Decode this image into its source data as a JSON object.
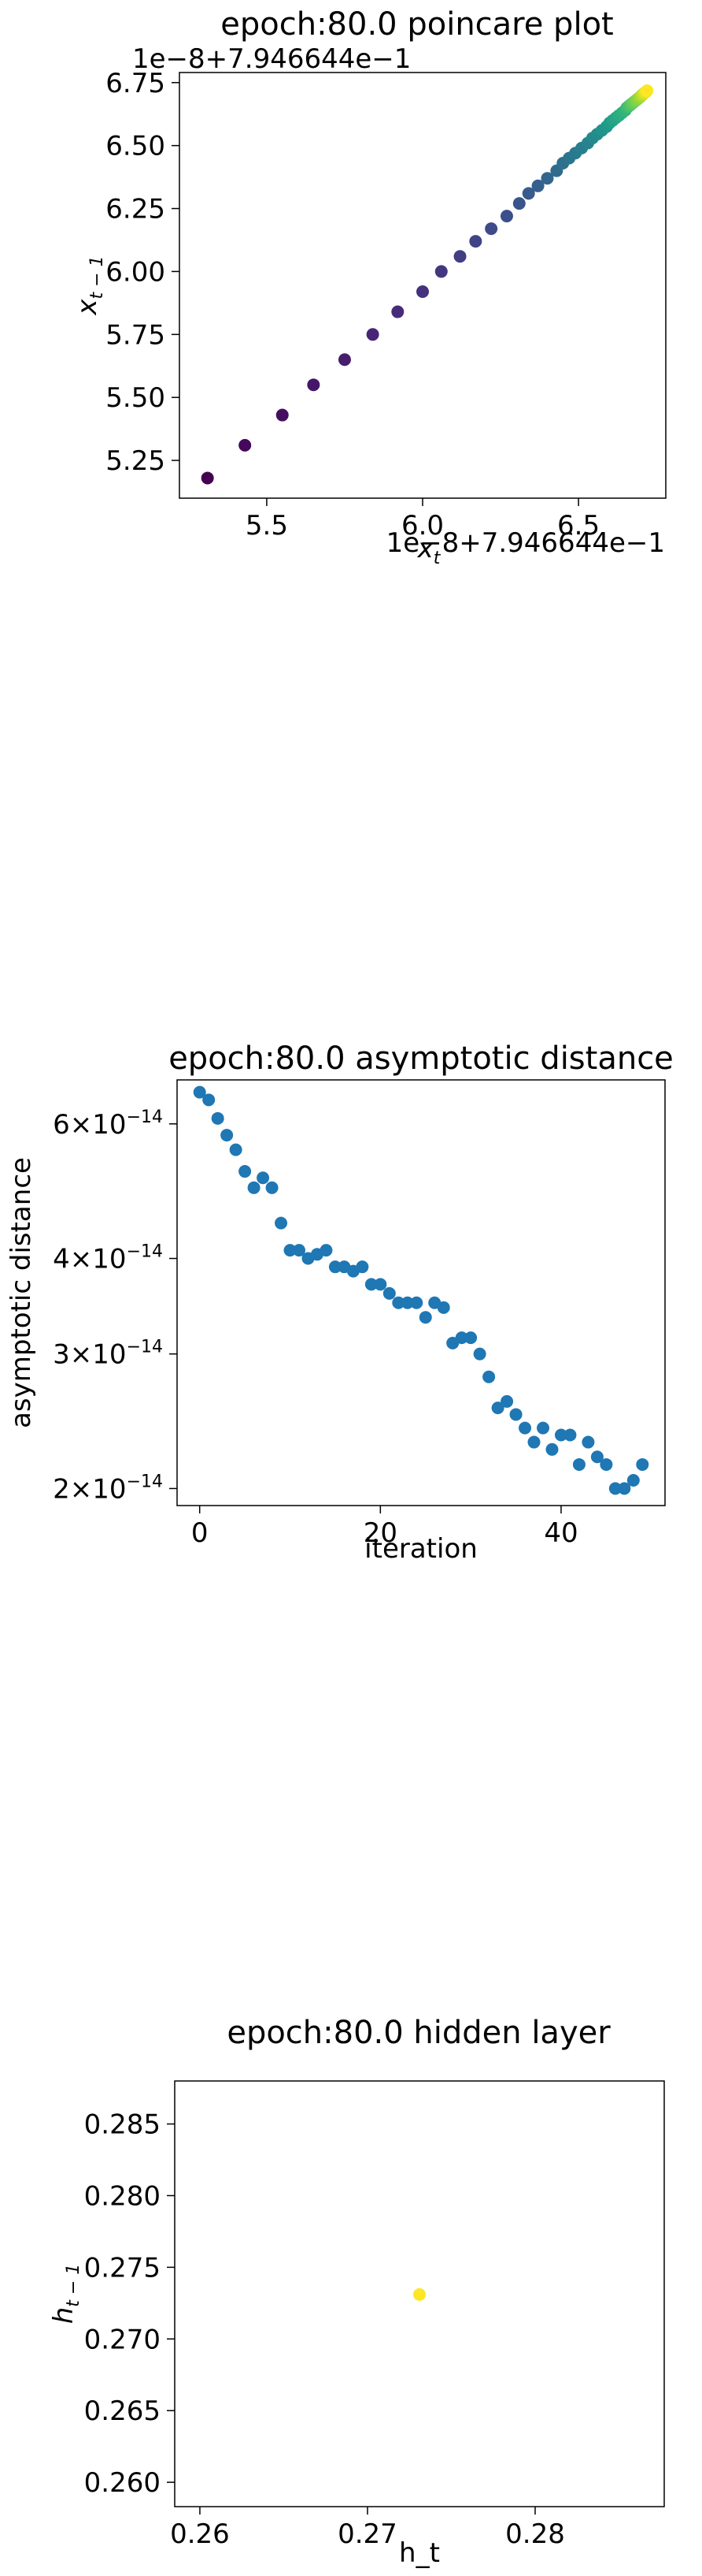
{
  "chart_data": [
    {
      "type": "scatter",
      "title": "epoch:80.0 poincare plot",
      "xlabel": "x_t",
      "ylabel": "x_{t-1}",
      "x_offset_label": "1e−8+7.946644e−1",
      "y_offset_label": "1e−8+7.946644e−1",
      "xlim": [
        5.22,
        6.78
      ],
      "ylim": [
        5.1,
        6.79
      ],
      "xticks": [
        5.5,
        6.0,
        6.5
      ],
      "xtick_labels": [
        "5.5",
        "6.0",
        "6.5"
      ],
      "yticks": [
        5.25,
        5.5,
        5.75,
        6.0,
        6.25,
        6.5,
        6.75
      ],
      "ytick_labels": [
        "5.25",
        "5.50",
        "5.75",
        "6.00",
        "6.25",
        "6.50",
        "6.75"
      ],
      "colormap": "viridis",
      "grid": false,
      "x": [
        5.31,
        5.43,
        5.55,
        5.65,
        5.75,
        5.84,
        5.92,
        6.0,
        6.06,
        6.12,
        6.17,
        6.22,
        6.27,
        6.31,
        6.34,
        6.37,
        6.4,
        6.43,
        6.45,
        6.47,
        6.49,
        6.51,
        6.53,
        6.545,
        6.56,
        6.575,
        6.59,
        6.6,
        6.61,
        6.62,
        6.63,
        6.64,
        6.65,
        6.655,
        6.66,
        6.665,
        6.67,
        6.675,
        6.68,
        6.685,
        6.69,
        6.695,
        6.7,
        6.703,
        6.706,
        6.709,
        6.712,
        6.715,
        6.718,
        6.72
      ],
      "y": [
        5.18,
        5.31,
        5.43,
        5.55,
        5.65,
        5.75,
        5.84,
        5.92,
        6.0,
        6.06,
        6.12,
        6.17,
        6.22,
        6.27,
        6.31,
        6.34,
        6.37,
        6.4,
        6.43,
        6.45,
        6.47,
        6.49,
        6.51,
        6.53,
        6.545,
        6.56,
        6.575,
        6.59,
        6.6,
        6.61,
        6.62,
        6.63,
        6.64,
        6.65,
        6.655,
        6.66,
        6.665,
        6.67,
        6.675,
        6.68,
        6.685,
        6.69,
        6.695,
        6.7,
        6.703,
        6.706,
        6.709,
        6.712,
        6.715,
        6.718
      ]
    },
    {
      "type": "scatter",
      "title": "epoch:80.0 asymptotic distance",
      "xlabel": "iteration",
      "ylabel": "asymptotic distance",
      "yscale": "log",
      "xlim": [
        -2.5,
        51.5
      ],
      "ylim": [
        1.9e-14,
        6.85e-14
      ],
      "xticks": [
        0,
        20,
        40
      ],
      "xtick_labels": [
        "0",
        "20",
        "40"
      ],
      "yticks": [
        2e-14,
        3e-14,
        4e-14,
        6e-14
      ],
      "ytick_mantissa": [
        "2",
        "3",
        "4",
        "6"
      ],
      "ytick_base": "×10",
      "ytick_exponent": "−14",
      "color": "#1f77b4",
      "grid": false,
      "x": [
        0,
        1,
        2,
        3,
        4,
        5,
        6,
        7,
        8,
        9,
        10,
        11,
        12,
        13,
        14,
        15,
        16,
        17,
        18,
        19,
        20,
        21,
        22,
        23,
        24,
        25,
        26,
        27,
        28,
        29,
        30,
        31,
        32,
        33,
        34,
        35,
        36,
        37,
        38,
        39,
        40,
        41,
        42,
        43,
        44,
        45,
        46,
        47,
        48,
        49
      ],
      "y": [
        6.6e-14,
        6.45e-14,
        6.1e-14,
        5.8e-14,
        5.55e-14,
        5.2e-14,
        4.95e-14,
        5.1e-14,
        4.95e-14,
        4.45e-14,
        4.1e-14,
        4.1e-14,
        4e-14,
        4.05e-14,
        4.1e-14,
        3.9e-14,
        3.9e-14,
        3.85e-14,
        3.9e-14,
        3.7e-14,
        3.7e-14,
        3.6e-14,
        3.5e-14,
        3.5e-14,
        3.5e-14,
        3.35e-14,
        3.5e-14,
        3.45e-14,
        3.1e-14,
        3.15e-14,
        3.15e-14,
        3e-14,
        2.8e-14,
        2.55e-14,
        2.6e-14,
        2.5e-14,
        2.4e-14,
        2.3e-14,
        2.4e-14,
        2.25e-14,
        2.35e-14,
        2.35e-14,
        2.15e-14,
        2.3e-14,
        2.2e-14,
        2.15e-14,
        2e-14,
        2e-14,
        2.05e-14,
        2.15e-14
      ]
    },
    {
      "type": "scatter",
      "title": "epoch:80.0 hidden layer",
      "xlabel": "h_t",
      "ylabel": "h_{t-1}",
      "xlim": [
        0.2585,
        0.2877
      ],
      "ylim": [
        0.2583,
        0.288
      ],
      "xticks": [
        0.26,
        0.27,
        0.28
      ],
      "xtick_labels": [
        "0.26",
        "0.27",
        "0.28"
      ],
      "yticks": [
        0.26,
        0.265,
        0.27,
        0.275,
        0.28,
        0.285
      ],
      "ytick_labels": [
        "0.260",
        "0.265",
        "0.270",
        "0.275",
        "0.280",
        "0.285"
      ],
      "color": "#fde725",
      "grid": false,
      "x": [
        0.2731
      ],
      "y": [
        0.2731
      ]
    }
  ]
}
